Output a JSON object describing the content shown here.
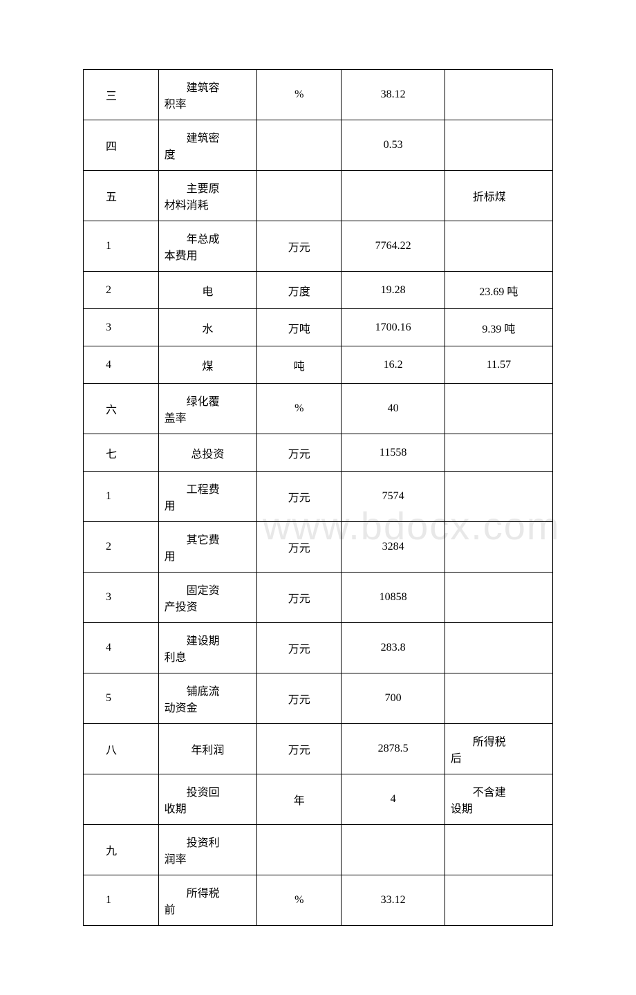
{
  "watermark_text": "www.bdocx.com",
  "table": {
    "border_color": "#000000",
    "background_color": "#ffffff",
    "font_size": 16,
    "columns": [
      {
        "width_pct": 16,
        "align": "left"
      },
      {
        "width_pct": 21,
        "align": "left"
      },
      {
        "width_pct": 18,
        "align": "center"
      },
      {
        "width_pct": 22,
        "align": "center"
      },
      {
        "width_pct": 23,
        "align": "left"
      }
    ],
    "rows": [
      {
        "c1": "三",
        "c2_l1": "建筑容",
        "c2_l2": "积率",
        "c3": "%",
        "c4": "38.12",
        "c5": "",
        "tall": true
      },
      {
        "c1": "四",
        "c2_l1": "建筑密",
        "c2_l2": "度",
        "c3": "",
        "c4": "0.53",
        "c5": "",
        "tall": true
      },
      {
        "c1": "五",
        "c2_l1": "主要原",
        "c2_l2": "材料消耗",
        "c3": "",
        "c4": "",
        "c5": "折标煤",
        "c5_indent": true,
        "tall": true
      },
      {
        "c1": "1",
        "c2_l1": "年总成",
        "c2_l2": "本费用",
        "c3": "万元",
        "c4": "7764.22",
        "c5": "",
        "tall": true
      },
      {
        "c1": "2",
        "c2_l1": "电",
        "c2_single_center": true,
        "c3": "万度",
        "c4": "19.28",
        "c5": "23.69 吨",
        "c5_center": true,
        "tall": false
      },
      {
        "c1": "3",
        "c2_l1": "水",
        "c2_single_center": true,
        "c3": "万吨",
        "c4": "1700.16",
        "c5": "9.39 吨",
        "c5_center": true,
        "tall": false
      },
      {
        "c1": "4",
        "c2_l1": "煤",
        "c2_single_center": true,
        "c3": "吨",
        "c4": "16.2",
        "c5": "11.57",
        "c5_center": true,
        "tall": false
      },
      {
        "c1": "六",
        "c2_l1": "绿化覆",
        "c2_l2": "盖率",
        "c3": "%",
        "c4": "40",
        "c5": "",
        "tall": true
      },
      {
        "c1": "七",
        "c2_l1": "总投资",
        "c2_single_center": true,
        "c3": "万元",
        "c4": "11558",
        "c5": "",
        "tall": false
      },
      {
        "c1": "1",
        "c2_l1": "工程费",
        "c2_l2": "用",
        "c3": "万元",
        "c4": "7574",
        "c5": "",
        "tall": true
      },
      {
        "c1": "2",
        "c2_l1": "其它费",
        "c2_l2": "用",
        "c3": "万元",
        "c4": "3284",
        "c5": "",
        "tall": true
      },
      {
        "c1": "3",
        "c2_l1": "固定资",
        "c2_l2": "产投资",
        "c3": "万元",
        "c4": "10858",
        "c5": "",
        "tall": true
      },
      {
        "c1": "4",
        "c2_l1": "建设期",
        "c2_l2": "利息",
        "c3": "万元",
        "c4": "283.8",
        "c5": "",
        "tall": true
      },
      {
        "c1": "5",
        "c2_l1": "铺底流",
        "c2_l2": "动资金",
        "c3": "万元",
        "c4": "700",
        "c5": "",
        "tall": true
      },
      {
        "c1": "八",
        "c2_l1": "年利润",
        "c2_single_center": true,
        "c3": "万元",
        "c4": "2878.5",
        "c5_l1": "所得税",
        "c5_l2": "后",
        "tall": true
      },
      {
        "c1": "",
        "c2_l1": "投资回",
        "c2_l2": "收期",
        "c3": "年",
        "c4": "4",
        "c5_l1": "不含建",
        "c5_l2": "设期",
        "tall": true
      },
      {
        "c1": "九",
        "c2_l1": "投资利",
        "c2_l2": "润率",
        "c3": "",
        "c4": "",
        "c5": "",
        "tall": true
      },
      {
        "c1": "1",
        "c2_l1": "所得税",
        "c2_l2": "前",
        "c3": "%",
        "c4": "33.12",
        "c5": "",
        "tall": true
      }
    ]
  }
}
